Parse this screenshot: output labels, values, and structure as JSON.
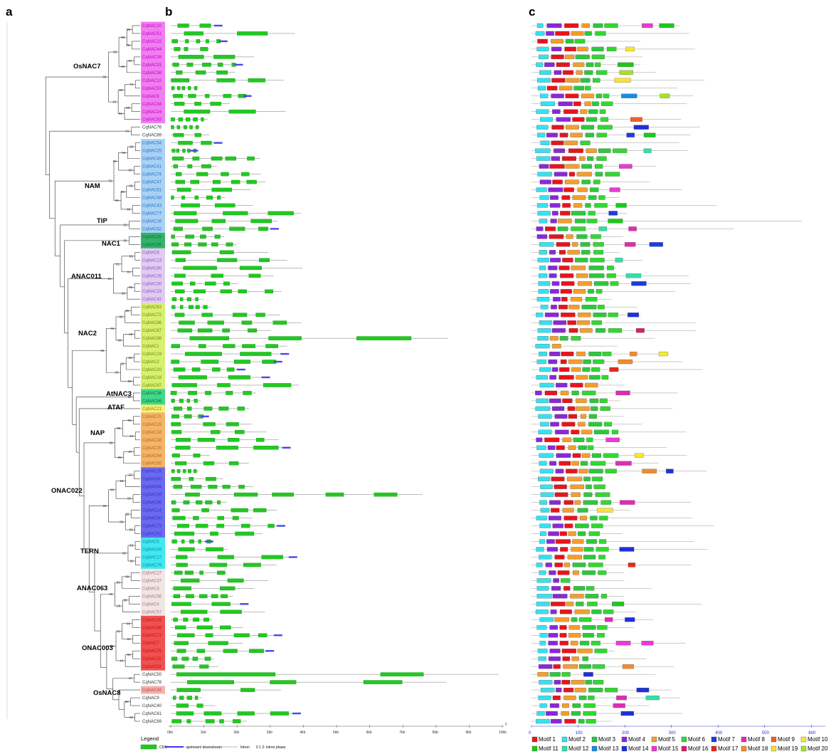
{
  "panels": {
    "a": "a",
    "b": "b",
    "c": "c"
  },
  "genes": [
    "CqNAC10",
    "CqNAC51",
    "CqNAC22",
    "CqNAC44",
    "CqNAC39",
    "CqNAC31",
    "CqNAC58",
    "CqNAC12",
    "CqNAC53",
    "CqNAC6",
    "CqNAC34",
    "CqNAC24",
    "CqNAC83",
    "CqNAC76",
    "CqNAC89",
    "CqNAC54",
    "CqNAC25",
    "CqNAC49",
    "CqNAC41",
    "CqNAC74",
    "CqNAC47",
    "CqNAC81",
    "CqNAC48",
    "CqNAC43",
    "CqNAC77",
    "CqNAC16",
    "CqNAC62",
    "CqNAC28",
    "CqNAC55",
    "CqNAC8",
    "CqNAC13",
    "CqNAC80",
    "CqNAC26",
    "CqNAC30",
    "CqNAC23",
    "CqNAC42",
    "CqNAC63",
    "CqNAC72",
    "CqNAC86",
    "CqNAC87",
    "CqNAC88",
    "CqNAC1",
    "CqNAC19",
    "CqNAC2",
    "CqNAC20",
    "CqNAC18",
    "CqNAC67",
    "CqNAC36",
    "CqNAC66",
    "CqNAC21",
    "CqNAC70",
    "CqNAC15",
    "CqNAC32",
    "CqNAC38",
    "CqNAC35",
    "CqNAC64",
    "CqNAC65",
    "CqNAC29",
    "CqNAC60",
    "CqNAC84",
    "CqNAC59",
    "CqNAC85",
    "CqNAC14",
    "CqNAC90",
    "CqNAC73",
    "CqNAC82",
    "CqNAC5",
    "CqNAC46",
    "CqNAC17",
    "CqNAC79",
    "CqNAC27",
    "CqNAC37",
    "CqNAC3",
    "CqNAC56",
    "CqNAC4",
    "CqNAC57",
    "CqNAC33",
    "CqNAC68",
    "CqNAC71",
    "CqNAC7",
    "CqNAC75",
    "CqNAC11",
    "CqNAC52",
    "CqNAC50",
    "CqNAC78",
    "CqNAC45",
    "CqNAC9",
    "CqNAC40",
    "CqNAC61",
    "CqNAC69"
  ],
  "subfamilies": [
    {
      "name": "OsNAC7",
      "first": 0,
      "last": 12,
      "color": "#f07ef0",
      "text": "#c000c0"
    },
    {
      "name": "NAM",
      "first": 15,
      "last": 24,
      "color": "#a8d2f4",
      "text": "#2a6fc0"
    },
    {
      "name": "TIP",
      "first": 25,
      "last": 26,
      "color": "#a8d2f4",
      "text": "#2a6fc0"
    },
    {
      "name": "NAC1",
      "first": 27,
      "last": 28,
      "color": "#33b36b",
      "text": "#0d6b35"
    },
    {
      "name": "ANAC011",
      "first": 29,
      "last": 35,
      "color": "#e0ccf0",
      "text": "#8a50c0"
    },
    {
      "name": "NAC2",
      "first": 36,
      "last": 46,
      "color": "#d8f070",
      "text": "#6a8a00"
    },
    {
      "name": "AtNAC3",
      "first": 47,
      "last": 48,
      "color": "#40d98a",
      "text": "#0d6b35"
    },
    {
      "name": "ATAF",
      "first": 49,
      "last": 49,
      "color": "#f8f070",
      "text": "#8a8000"
    },
    {
      "name": "NAP",
      "first": 50,
      "last": 56,
      "color": "#f4b46c",
      "text": "#b86a00"
    },
    {
      "name": "ONAC022",
      "first": 57,
      "last": 65,
      "color": "#6a6af0",
      "text": "#3030c0"
    },
    {
      "name": "TERN",
      "first": 66,
      "last": 69,
      "color": "#40e8f0",
      "text": "#0090a0"
    },
    {
      "name": "ANAC063",
      "first": 70,
      "last": 75,
      "color": "#efe6e6",
      "text": "#b07070"
    },
    {
      "name": "ONAC003",
      "first": 76,
      "last": 82,
      "color": "#f05050",
      "text": "#c01010"
    },
    {
      "name": "OsNAC8",
      "first": 85,
      "last": 85,
      "color": "#f4b0b0",
      "text": "#c04040"
    }
  ],
  "bootstrap_labels": [
    "99",
    "98",
    "90",
    "87",
    "90",
    "99",
    "71",
    "99",
    "99",
    "91",
    "15",
    "99",
    "31",
    "99",
    "56",
    "99",
    "99",
    "83",
    "99",
    "99",
    "31",
    "70",
    "50",
    "99",
    "99",
    "91",
    "91",
    "99",
    "99",
    "91",
    "99",
    "99",
    "23",
    "99",
    "78",
    "63",
    "62",
    "99",
    "99",
    "99",
    "99",
    "99",
    "24",
    "96",
    "97",
    "99",
    "99",
    "23",
    "84",
    "99",
    "99",
    "92",
    "99",
    "99",
    "99",
    "93",
    "99",
    "99",
    "99",
    "99",
    "99",
    "26",
    "99",
    "99",
    "94",
    "78",
    "90",
    "44",
    "99",
    "10",
    "99",
    "43"
  ],
  "gene_structure_axis": {
    "ticks": [
      "0kb",
      "1kb",
      "2kb",
      "3kb",
      "4kb",
      "5kb",
      "6kb",
      "7kb",
      "8kb",
      "9kb",
      "10kb"
    ],
    "end_label": "y"
  },
  "gene_structure_legend": {
    "title": "Legend",
    "items": [
      "CDS",
      "upstream/ downstream",
      "Intron",
      "0 1 2: intron phase"
    ]
  },
  "motif_axis": {
    "ticks": [
      "0",
      "100",
      "200",
      "300",
      "400",
      "500",
      "600"
    ]
  },
  "motif_legend": [
    {
      "name": "Motif 1",
      "color": "#e8141c"
    },
    {
      "name": "Motif 2",
      "color": "#38e0f0"
    },
    {
      "name": "Motif 3",
      "color": "#2cc83c"
    },
    {
      "name": "Motif 4",
      "color": "#8a28d8"
    },
    {
      "name": "Motif 5",
      "color": "#f49e2c"
    },
    {
      "name": "Motif 6",
      "color": "#30d830"
    },
    {
      "name": "Motif 7",
      "color": "#1c3ce0"
    },
    {
      "name": "Motif 8",
      "color": "#e02cb4"
    },
    {
      "name": "Motif 9",
      "color": "#f06028"
    },
    {
      "name": "Motif 10",
      "color": "#f8e82c"
    },
    {
      "name": "Motif 11",
      "color": "#1cc81c"
    },
    {
      "name": "Motif 12",
      "color": "#30e0a8"
    },
    {
      "name": "Motif 13",
      "color": "#1c8ce0"
    },
    {
      "name": "Motif 14",
      "color": "#2030d8"
    },
    {
      "name": "Motif 15",
      "color": "#e83cd0"
    },
    {
      "name": "Motif 16",
      "color": "#d81c6c"
    },
    {
      "name": "Motif 17",
      "color": "#e8281c"
    },
    {
      "name": "Motif 18",
      "color": "#f08c2c"
    },
    {
      "name": "Motif 19",
      "color": "#f8e040"
    },
    {
      "name": "Motif 20",
      "color": "#a8e02c"
    }
  ]
}
